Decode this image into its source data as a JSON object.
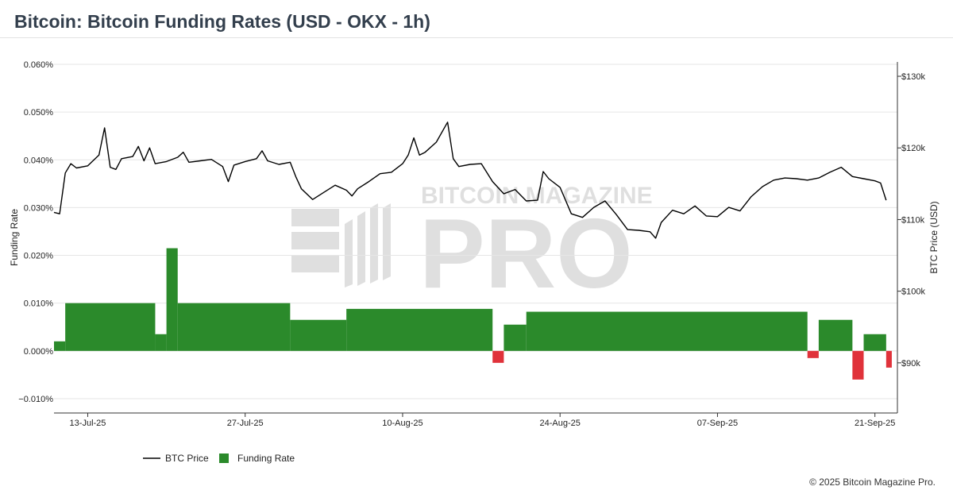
{
  "page": {
    "title": "Bitcoin: Bitcoin Funding Rates (USD - OKX - 1h)",
    "copyright": "© 2025 Bitcoin Magazine Pro."
  },
  "watermark": {
    "top_text": "BITCOIN MAGAZINE",
    "big_text": "PRO"
  },
  "colors": {
    "price_line": "#000000",
    "funding_positive": "#2b8a2b",
    "funding_negative": "#e0323a",
    "grid": "#e6e6e6",
    "axis": "#333333"
  },
  "chart_data": {
    "type": "bar+line",
    "title": "",
    "x_range": [
      "2025-07-10",
      "2025-09-23"
    ],
    "x_ticks": [
      {
        "date": "2025-07-13",
        "label": "13-Jul-25"
      },
      {
        "date": "2025-07-27",
        "label": "27-Jul-25"
      },
      {
        "date": "2025-08-10",
        "label": "10-Aug-25"
      },
      {
        "date": "2025-08-24",
        "label": "24-Aug-25"
      },
      {
        "date": "2025-09-07",
        "label": "07-Sep-25"
      },
      {
        "date": "2025-09-21",
        "label": "21-Sep-25"
      }
    ],
    "left_axis": {
      "label": "Funding Rate",
      "range": [
        -0.013,
        0.0605
      ],
      "ticks": [
        {
          "value": -0.01,
          "label": "−0.010%"
        },
        {
          "value": 0.0,
          "label": "0.000%"
        },
        {
          "value": 0.01,
          "label": "0.010%"
        },
        {
          "value": 0.02,
          "label": "0.020%"
        },
        {
          "value": 0.03,
          "label": "0.030%"
        },
        {
          "value": 0.04,
          "label": "0.040%"
        },
        {
          "value": 0.05,
          "label": "0.050%"
        },
        {
          "value": 0.06,
          "label": "0.060%"
        }
      ]
    },
    "right_axis": {
      "label": "BTC Price (USD)",
      "range": [
        83000,
        132000
      ],
      "ticks": [
        {
          "value": 90000,
          "label": "$90k"
        },
        {
          "value": 100000,
          "label": "$100k"
        },
        {
          "value": 110000,
          "label": "$110k"
        },
        {
          "value": 120000,
          "label": "$120k"
        },
        {
          "value": 130000,
          "label": "$130k"
        }
      ]
    },
    "grid": true,
    "legend": {
      "placement": "bottom-left",
      "entries": [
        "BTC Price",
        "Funding Rate"
      ]
    },
    "series": [
      {
        "name": "BTC Price",
        "type": "line",
        "axis": "right",
        "points": [
          [
            "2025-07-10",
            111000
          ],
          [
            "2025-07-10T12",
            110800
          ],
          [
            "2025-07-11",
            116500
          ],
          [
            "2025-07-11T12",
            117800
          ],
          [
            "2025-07-12",
            117200
          ],
          [
            "2025-07-13",
            117500
          ],
          [
            "2025-07-14",
            119000
          ],
          [
            "2025-07-14T12",
            122800
          ],
          [
            "2025-07-15",
            117300
          ],
          [
            "2025-07-15T12",
            117000
          ],
          [
            "2025-07-16",
            118500
          ],
          [
            "2025-07-17",
            118800
          ],
          [
            "2025-07-17T12",
            120200
          ],
          [
            "2025-07-18",
            118200
          ],
          [
            "2025-07-18T12",
            120000
          ],
          [
            "2025-07-19",
            117800
          ],
          [
            "2025-07-20",
            118100
          ],
          [
            "2025-07-21",
            118700
          ],
          [
            "2025-07-21T12",
            119400
          ],
          [
            "2025-07-22",
            118000
          ],
          [
            "2025-07-23",
            118200
          ],
          [
            "2025-07-24",
            118400
          ],
          [
            "2025-07-25",
            117400
          ],
          [
            "2025-07-25T12",
            115300
          ],
          [
            "2025-07-26",
            117600
          ],
          [
            "2025-07-27",
            118100
          ],
          [
            "2025-07-28",
            118500
          ],
          [
            "2025-07-28T12",
            119600
          ],
          [
            "2025-07-29",
            118200
          ],
          [
            "2025-07-30",
            117700
          ],
          [
            "2025-07-31",
            118000
          ],
          [
            "2025-07-31T12",
            116000
          ],
          [
            "2025-08-01",
            114300
          ],
          [
            "2025-08-02",
            112800
          ],
          [
            "2025-08-03",
            113800
          ],
          [
            "2025-08-04",
            114800
          ],
          [
            "2025-08-05",
            114100
          ],
          [
            "2025-08-05T12",
            113300
          ],
          [
            "2025-08-06",
            114300
          ],
          [
            "2025-08-07",
            115300
          ],
          [
            "2025-08-08",
            116400
          ],
          [
            "2025-08-09",
            116600
          ],
          [
            "2025-08-10",
            117800
          ],
          [
            "2025-08-10T12",
            119000
          ],
          [
            "2025-08-11",
            121400
          ],
          [
            "2025-08-11T12",
            119000
          ],
          [
            "2025-08-12",
            119400
          ],
          [
            "2025-08-13",
            120800
          ],
          [
            "2025-08-14",
            123600
          ],
          [
            "2025-08-14T12",
            118500
          ],
          [
            "2025-08-15",
            117400
          ],
          [
            "2025-08-16",
            117700
          ],
          [
            "2025-08-17",
            117800
          ],
          [
            "2025-08-18",
            115300
          ],
          [
            "2025-08-19",
            113600
          ],
          [
            "2025-08-20",
            114200
          ],
          [
            "2025-08-21",
            112600
          ],
          [
            "2025-08-22",
            112700
          ],
          [
            "2025-08-22T12",
            116700
          ],
          [
            "2025-08-23",
            115700
          ],
          [
            "2025-08-24",
            114500
          ],
          [
            "2025-08-25",
            110800
          ],
          [
            "2025-08-26",
            110300
          ],
          [
            "2025-08-27",
            111700
          ],
          [
            "2025-08-28",
            112600
          ],
          [
            "2025-08-29",
            110700
          ],
          [
            "2025-08-30",
            108600
          ],
          [
            "2025-08-31",
            108500
          ],
          [
            "2025-09-01",
            108300
          ],
          [
            "2025-09-01T12",
            107400
          ],
          [
            "2025-09-02",
            109600
          ],
          [
            "2025-09-03",
            111300
          ],
          [
            "2025-09-04",
            110800
          ],
          [
            "2025-09-05",
            111900
          ],
          [
            "2025-09-06",
            110500
          ],
          [
            "2025-09-07",
            110400
          ],
          [
            "2025-09-08",
            111700
          ],
          [
            "2025-09-09",
            111200
          ],
          [
            "2025-09-10",
            113200
          ],
          [
            "2025-09-11",
            114600
          ],
          [
            "2025-09-12",
            115500
          ],
          [
            "2025-09-13",
            115800
          ],
          [
            "2025-09-14",
            115700
          ],
          [
            "2025-09-15",
            115500
          ],
          [
            "2025-09-16",
            115800
          ],
          [
            "2025-09-17",
            116600
          ],
          [
            "2025-09-18",
            117300
          ],
          [
            "2025-09-19",
            116000
          ],
          [
            "2025-09-20",
            115700
          ],
          [
            "2025-09-21",
            115400
          ],
          [
            "2025-09-21T12",
            115100
          ],
          [
            "2025-09-22",
            112700
          ]
        ]
      },
      {
        "name": "Funding Rate",
        "type": "bar",
        "axis": "left",
        "segments": [
          {
            "from": "2025-07-10",
            "to": "2025-07-11",
            "value": 0.002
          },
          {
            "from": "2025-07-11",
            "to": "2025-07-19",
            "value": 0.01
          },
          {
            "from": "2025-07-19",
            "to": "2025-07-20",
            "value": 0.0035
          },
          {
            "from": "2025-07-20",
            "to": "2025-07-21",
            "value": 0.0215
          },
          {
            "from": "2025-07-21",
            "to": "2025-07-31",
            "value": 0.01
          },
          {
            "from": "2025-07-31",
            "to": "2025-08-05",
            "value": 0.0065
          },
          {
            "from": "2025-08-05",
            "to": "2025-08-18",
            "value": 0.0088
          },
          {
            "from": "2025-08-18",
            "to": "2025-08-19",
            "value": -0.0025
          },
          {
            "from": "2025-08-19",
            "to": "2025-08-21",
            "value": 0.0055
          },
          {
            "from": "2025-08-21",
            "to": "2025-09-15",
            "value": 0.0082
          },
          {
            "from": "2025-09-15",
            "to": "2025-09-16",
            "value": -0.0015
          },
          {
            "from": "2025-09-16",
            "to": "2025-09-19",
            "value": 0.0065
          },
          {
            "from": "2025-09-19",
            "to": "2025-09-20",
            "value": -0.006
          },
          {
            "from": "2025-09-20",
            "to": "2025-09-22",
            "value": 0.0035
          },
          {
            "from": "2025-09-22",
            "to": "2025-09-22T12",
            "value": -0.0035
          }
        ]
      }
    ]
  }
}
